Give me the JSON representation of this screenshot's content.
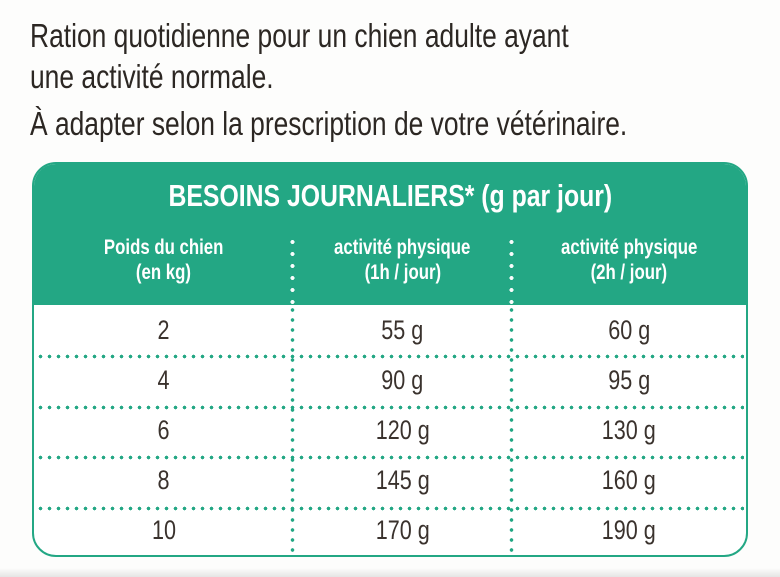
{
  "intro": {
    "line1": "Ration quotidienne pour un chien adulte ayant",
    "line2": "une activité normale.",
    "line3": "À adapter selon la prescription de votre vétérinaire."
  },
  "table": {
    "title": "BESOINS JOURNALIERS* (g par jour)",
    "columns": [
      {
        "line1": "Poids du chien",
        "line2": "(en kg)"
      },
      {
        "line1": "activité physique",
        "line2": "(1h / jour)"
      },
      {
        "line1": "activité physique",
        "line2": "(2h / jour)"
      }
    ],
    "rows": [
      {
        "weight": "2",
        "activity1h": "55 g",
        "activity2h": "60 g"
      },
      {
        "weight": "4",
        "activity1h": "90 g",
        "activity2h": "95 g"
      },
      {
        "weight": "6",
        "activity1h": "120 g",
        "activity2h": "130 g"
      },
      {
        "weight": "8",
        "activity1h": "145 g",
        "activity2h": "160 g"
      },
      {
        "weight": "10",
        "activity1h": "170 g",
        "activity2h": "190 g"
      }
    ],
    "colors": {
      "accent_green": "#23a784",
      "body_text": "#3a322d",
      "header_text": "#ffffff",
      "intro_text": "#2c2723"
    }
  }
}
